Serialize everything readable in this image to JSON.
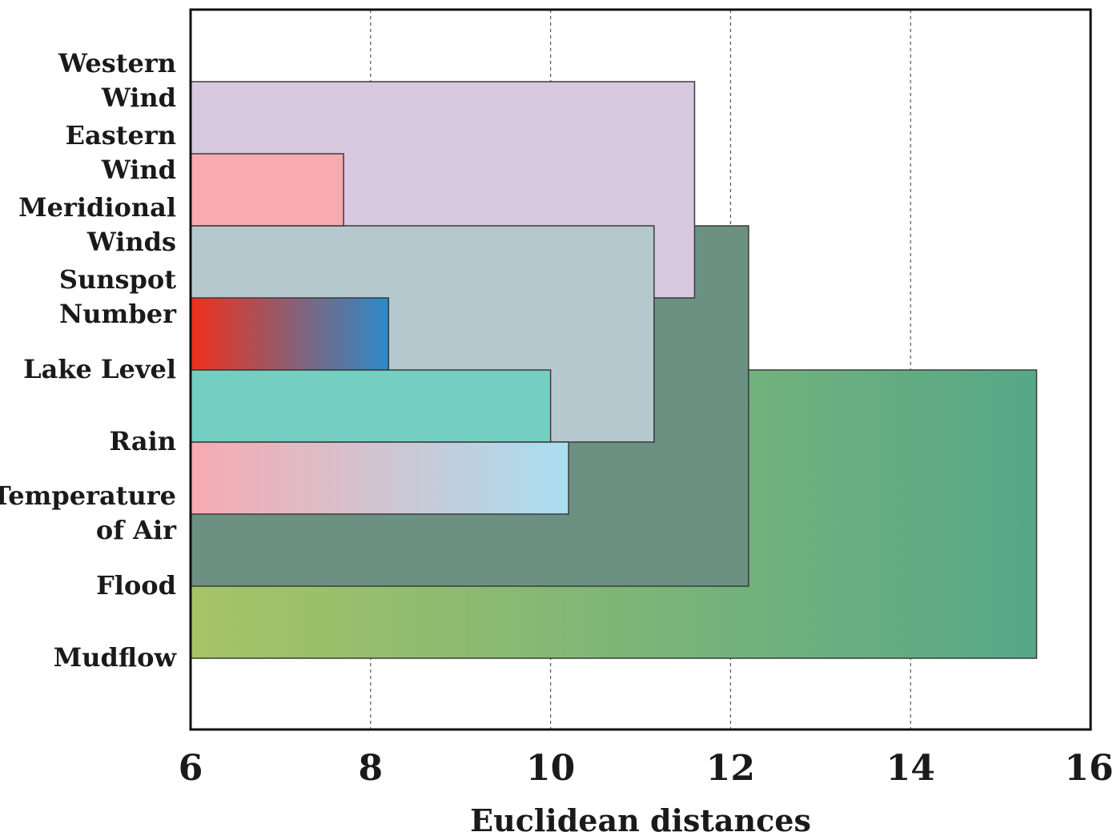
{
  "chart_data": {
    "type": "dendrogram",
    "xlabel": "Euclidean distances",
    "xlim": [
      6,
      16
    ],
    "xticks": [
      6,
      8,
      10,
      12,
      14,
      16
    ],
    "grid": "vertical dashed",
    "leaves": [
      "Western Wind",
      "Eastern Wind",
      "Meridional Winds",
      "Sunspot Number",
      "Lake Level",
      "Rain",
      "Temperature of Air",
      "Flood",
      "Mudflow"
    ],
    "labels": [
      [
        "Western",
        "Wind"
      ],
      [
        "Eastern",
        "Wind"
      ],
      [
        "Meridional",
        "Winds"
      ],
      [
        "Sunspot",
        "Number"
      ],
      [
        "Lake Level"
      ],
      [
        "Rain"
      ],
      [
        "Temperature",
        "of Air"
      ],
      [
        "Flood"
      ],
      [
        "Mudflow"
      ]
    ],
    "merges": [
      {
        "members": [
          "Eastern Wind",
          "Meridional Winds"
        ],
        "distance": 7.7,
        "color": "#f8aab1"
      },
      {
        "members": [
          "Sunspot Number",
          "Lake Level"
        ],
        "distance": 8.2,
        "gradient": [
          "#f0301a",
          "#2c8bc9"
        ]
      },
      {
        "members": [
          "Lake Level",
          "Rain"
        ],
        "distance": 10.0,
        "color": "#74cfc2"
      },
      {
        "members": [
          "Rain",
          "Temperature of Air"
        ],
        "distance": 10.2,
        "gradient": [
          "#f8aab1",
          "#a9def0"
        ]
      },
      {
        "members": [
          "Meridional Winds",
          "Rain"
        ],
        "distance": 11.15,
        "color": "#b5c8cd"
      },
      {
        "members": [
          "Western Wind",
          "Sunspot Number"
        ],
        "distance": 11.6,
        "color": "#d8c8e0"
      },
      {
        "members": [
          "Meridional Winds",
          "Flood"
        ],
        "distance": 12.2,
        "color": "#6c9081"
      },
      {
        "members": [
          "Lake Level",
          "Mudflow"
        ],
        "distance": 15.4,
        "gradient": [
          "#a7c465",
          "#56a888"
        ]
      }
    ]
  }
}
